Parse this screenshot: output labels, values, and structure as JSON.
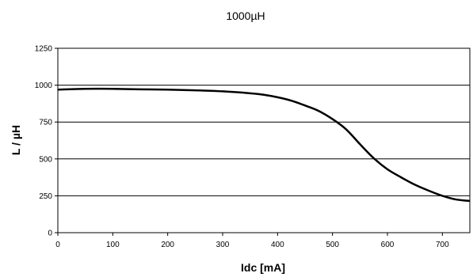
{
  "chart_data": {
    "type": "line",
    "title": "1000µH",
    "xlabel": "Idc [mA]",
    "ylabel": "L / µH",
    "xlim": [
      0,
      750
    ],
    "ylim": [
      0,
      1250
    ],
    "xticks": [
      0,
      100,
      200,
      300,
      400,
      500,
      600,
      700
    ],
    "yticks": [
      0,
      250,
      500,
      750,
      1000,
      1250
    ],
    "grid": "horizontal",
    "legend": "none",
    "line_color": "#000000",
    "series": [
      {
        "x": [
          0,
          50,
          100,
          150,
          200,
          250,
          300,
          350,
          375,
          400,
          425,
          450,
          475,
          500,
          525,
          550,
          575,
          600,
          625,
          650,
          675,
          700,
          725,
          750
        ],
        "y": [
          970,
          975,
          975,
          972,
          970,
          965,
          958,
          945,
          935,
          918,
          895,
          862,
          825,
          770,
          700,
          600,
          505,
          430,
          375,
          325,
          285,
          250,
          225,
          215
        ]
      }
    ]
  }
}
